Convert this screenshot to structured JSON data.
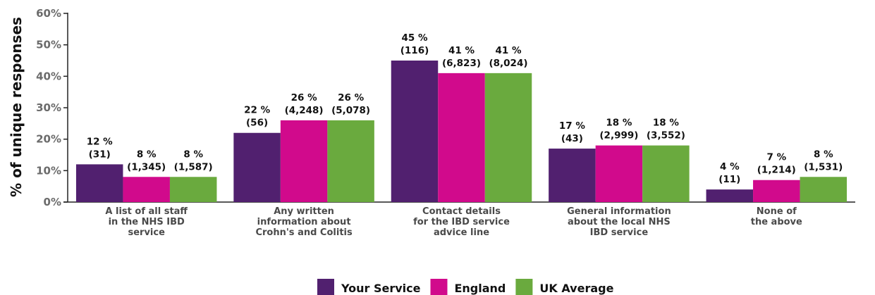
{
  "chart_data": {
    "type": "bar",
    "ylabel": "% of unique responses",
    "ylim": [
      0,
      60
    ],
    "yticks": [
      "0%",
      "10%",
      "20%",
      "30%",
      "40%",
      "50%",
      "60%"
    ],
    "categories": [
      [
        "A list of all staff",
        "in the NHS IBD",
        "service"
      ],
      [
        "Any written",
        "information about",
        "Crohn's and Colitis"
      ],
      [
        "Contact details",
        "for the IBD service",
        "advice line"
      ],
      [
        "General information",
        "about the local NHS",
        "IBD service"
      ],
      [
        "None of",
        "the above"
      ]
    ],
    "series": [
      {
        "name": "Your Service",
        "color": "#51206f",
        "values": [
          12,
          22,
          45,
          17,
          4
        ],
        "display": [
          12,
          22,
          45,
          17,
          4
        ],
        "counts": [
          "(31)",
          "(56)",
          "(116)",
          "(43)",
          "(11)"
        ]
      },
      {
        "name": "England",
        "color": "#d10a8c",
        "values": [
          8,
          26,
          41,
          18,
          7
        ],
        "display": [
          8,
          26,
          41,
          18,
          7
        ],
        "counts": [
          "(1,345)",
          "(4,248)",
          "(6,823)",
          "(2,999)",
          "(1,214)"
        ]
      },
      {
        "name": "UK Average",
        "color": "#6aaa3e",
        "values": [
          8,
          26,
          41,
          18,
          8
        ],
        "display": [
          8,
          26,
          41,
          18,
          8
        ],
        "counts": [
          "(1,587)",
          "(5,078)",
          "(8,024)",
          "(3,552)",
          "(1,531)"
        ]
      }
    ],
    "legend": "bottom-center"
  }
}
